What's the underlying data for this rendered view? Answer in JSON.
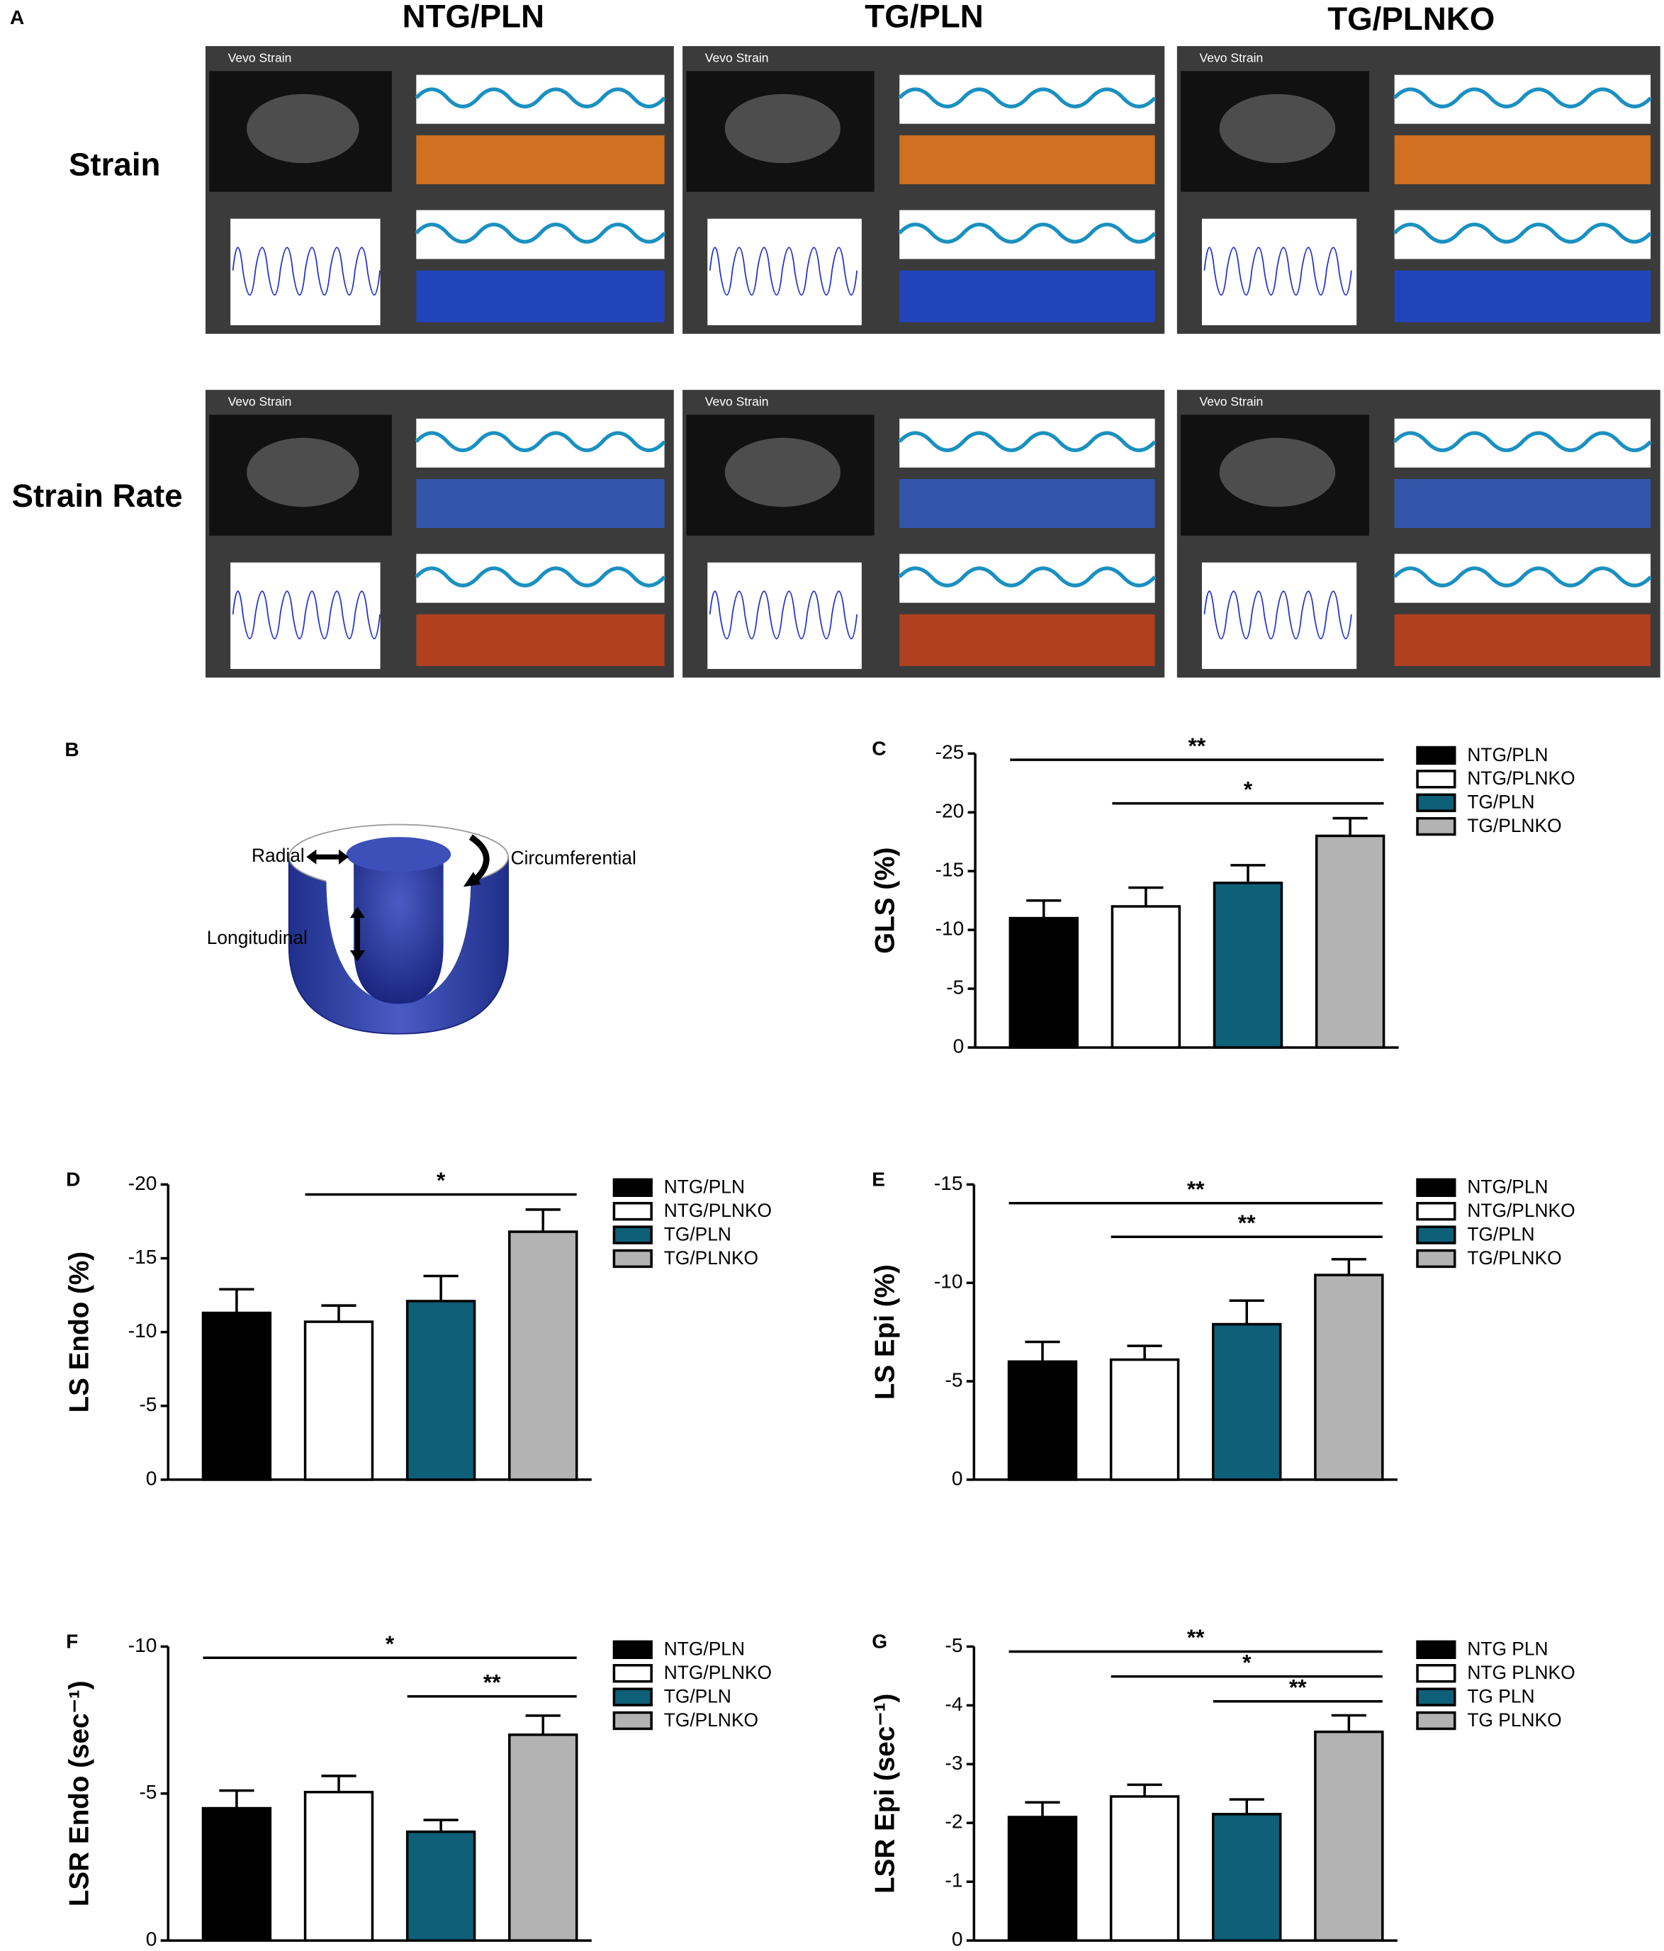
{
  "panel_a": {
    "label": "A",
    "columns": [
      "NTG/PLN",
      "TG/PLN",
      "TG/PLNKO"
    ],
    "rows": [
      "Strain",
      "Strain Rate"
    ],
    "software": "Vevo Strain"
  },
  "panel_b": {
    "label": "B",
    "labels": {
      "radial": "Radial",
      "circumferential": "Circumferential",
      "longitudinal": "Longitudinal"
    }
  },
  "chart_data": [
    {
      "type": "bar",
      "label": "C",
      "ylabel": "GLS (%)",
      "categories": [
        "NTG/PLN",
        "NTG/PLNKO",
        "TG/PLN",
        "TG/PLNKO"
      ],
      "colors": [
        "#000000",
        "#ffffff",
        "#0e5f78",
        "#b3b3b3"
      ],
      "values": [
        -11,
        -12,
        -14,
        -18
      ],
      "errors": [
        1.5,
        1.6,
        1.5,
        1.5
      ],
      "ylim": [
        0,
        -25
      ],
      "yticks": [
        0,
        -5,
        -10,
        -15,
        -20,
        -25
      ],
      "significance": [
        {
          "from": 0,
          "to": 3,
          "label": "**"
        },
        {
          "from": 1,
          "to": 3,
          "label": "*"
        }
      ]
    },
    {
      "type": "bar",
      "label": "D",
      "ylabel": "LS Endo (%)",
      "categories": [
        "NTG/PLN",
        "NTG/PLNKO",
        "TG/PLN",
        "TG/PLNKO"
      ],
      "colors": [
        "#000000",
        "#ffffff",
        "#0e5f78",
        "#b3b3b3"
      ],
      "values": [
        -11.3,
        -10.7,
        -12.1,
        -16.8
      ],
      "errors": [
        1.6,
        1.1,
        1.7,
        1.5
      ],
      "ylim": [
        0,
        -20
      ],
      "yticks": [
        0,
        -5,
        -10,
        -15,
        -20
      ],
      "significance": [
        {
          "from": 1,
          "to": 3,
          "label": "*"
        }
      ]
    },
    {
      "type": "bar",
      "label": "E",
      "ylabel": "LS Epi (%)",
      "categories": [
        "NTG/PLN",
        "NTG/PLNKO",
        "TG/PLN",
        "TG/PLNKO"
      ],
      "colors": [
        "#000000",
        "#ffffff",
        "#0e5f78",
        "#b3b3b3"
      ],
      "values": [
        -6,
        -6.1,
        -7.9,
        -10.4
      ],
      "errors": [
        1,
        0.7,
        1.2,
        0.8
      ],
      "ylim": [
        0,
        -15
      ],
      "yticks": [
        0,
        -5,
        -10,
        -15
      ],
      "significance": [
        {
          "from": 0,
          "to": 3,
          "label": "**"
        },
        {
          "from": 1,
          "to": 3,
          "label": "**"
        }
      ]
    },
    {
      "type": "bar",
      "label": "F",
      "ylabel": "LSR Endo (sec⁻¹)",
      "categories": [
        "NTG/PLN",
        "NTG/PLNKO",
        "TG/PLN",
        "TG/PLNKO"
      ],
      "colors": [
        "#000000",
        "#ffffff",
        "#0e5f78",
        "#b3b3b3"
      ],
      "values": [
        -4.5,
        -5.05,
        -3.7,
        -7
      ],
      "errors": [
        0.6,
        0.55,
        0.4,
        0.65
      ],
      "ylim": [
        0,
        -10
      ],
      "yticks": [
        0,
        -5,
        -10
      ],
      "significance": [
        {
          "from": 0,
          "to": 3,
          "label": "*"
        },
        {
          "from": 2,
          "to": 3,
          "label": "**"
        }
      ]
    },
    {
      "type": "bar",
      "label": "G",
      "ylabel": "LSR Epi (sec⁻¹)",
      "categories": [
        "NTG PLN",
        "NTG PLNKO",
        "TG PLN",
        "TG PLNKO"
      ],
      "colors": [
        "#000000",
        "#ffffff",
        "#0e5f78",
        "#b3b3b3"
      ],
      "values": [
        -2.1,
        -2.45,
        -2.15,
        -3.55
      ],
      "errors": [
        0.25,
        0.2,
        0.25,
        0.28
      ],
      "ylim": [
        0,
        -5
      ],
      "yticks": [
        0,
        -1,
        -2,
        -3,
        -4,
        -5
      ],
      "significance": [
        {
          "from": 0,
          "to": 3,
          "label": "**"
        },
        {
          "from": 1,
          "to": 3,
          "label": "*"
        },
        {
          "from": 2,
          "to": 3,
          "label": "**"
        }
      ]
    }
  ]
}
